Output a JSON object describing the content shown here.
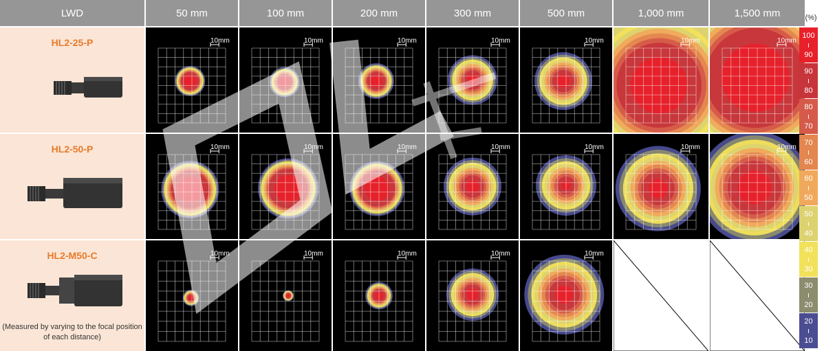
{
  "header": {
    "lwd": "LWD",
    "distances": [
      "50 mm",
      "100 mm",
      "200 mm",
      "300 mm",
      "500 mm",
      "1,000 mm",
      "1,500 mm"
    ]
  },
  "scale_label": "10mm",
  "models": [
    {
      "name": "HL2-25-P",
      "note": ""
    },
    {
      "name": "HL2-50-P",
      "note": ""
    },
    {
      "name": "HL2-M50-C",
      "note": "(Measured by varying to the focal position of each distance)"
    }
  ],
  "legend": {
    "unit": "(%)",
    "bands": [
      {
        "top": "100",
        "bottom": "90",
        "color": "#e8202a"
      },
      {
        "top": "90",
        "bottom": "80",
        "color": "#c7353a"
      },
      {
        "top": "80",
        "bottom": "70",
        "color": "#d55a4a"
      },
      {
        "top": "70",
        "bottom": "60",
        "color": "#e3864f"
      },
      {
        "top": "60",
        "bottom": "50",
        "color": "#f0a95c"
      },
      {
        "top": "50",
        "bottom": "40",
        "color": "#ddd270"
      },
      {
        "top": "40",
        "bottom": "30",
        "color": "#f2e15a"
      },
      {
        "top": "30",
        "bottom": "20",
        "color": "#8c8c6e"
      },
      {
        "top": "20",
        "bottom": "10",
        "color": "#4b4d92"
      }
    ]
  },
  "colors": {
    "header_bg": "#969696",
    "model_bg": "#fbe5d6",
    "model_name": "#e87a28"
  }
}
